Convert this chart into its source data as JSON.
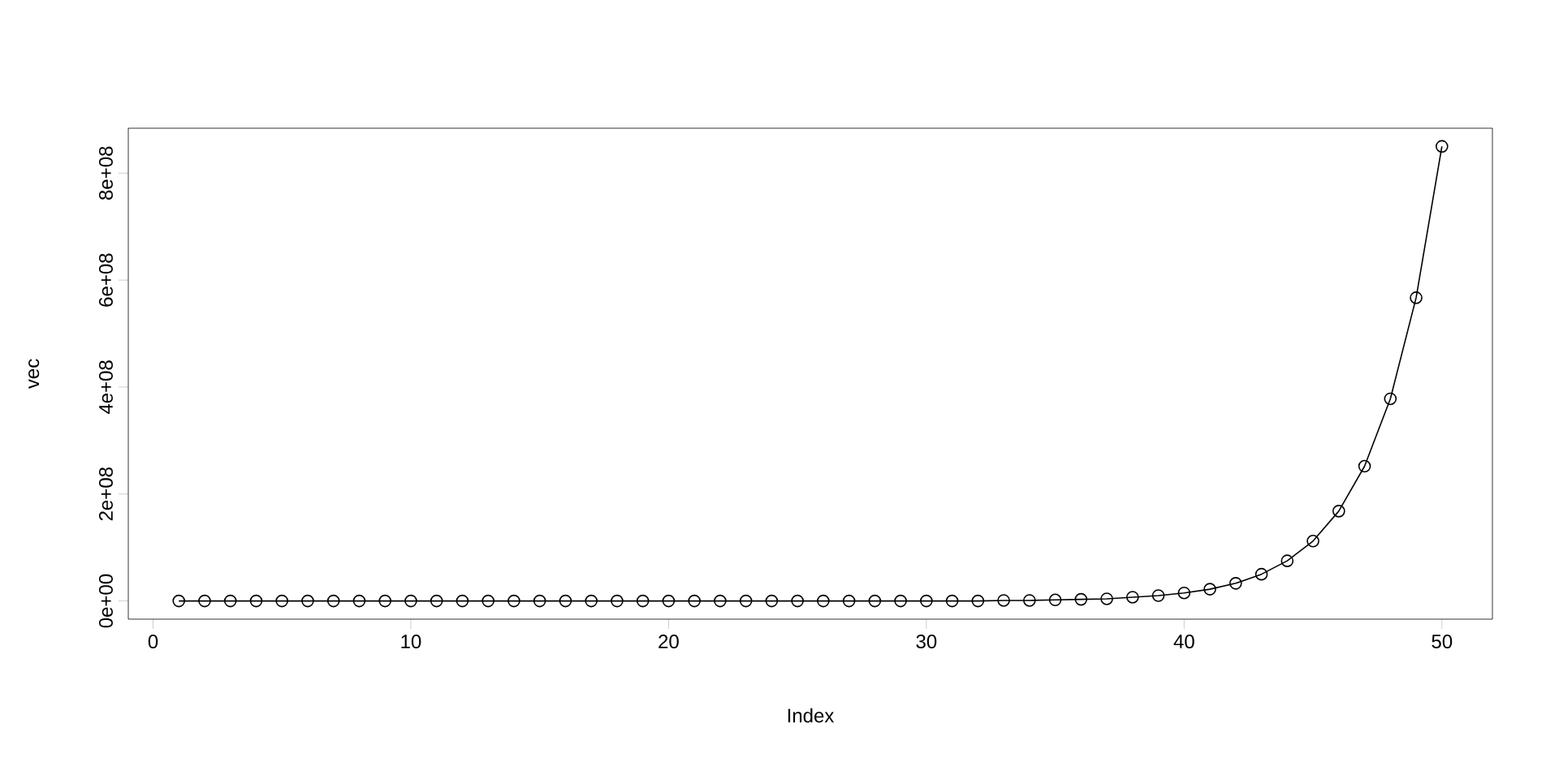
{
  "chart_data": {
    "type": "line",
    "xlabel": "Index",
    "ylabel": "vec",
    "x": [
      1,
      2,
      3,
      4,
      5,
      6,
      7,
      8,
      9,
      10,
      11,
      12,
      13,
      14,
      15,
      16,
      17,
      18,
      19,
      20,
      21,
      22,
      23,
      24,
      25,
      26,
      27,
      28,
      29,
      30,
      31,
      32,
      33,
      34,
      35,
      36,
      37,
      38,
      39,
      40,
      41,
      42,
      43,
      44,
      45,
      46,
      47,
      48,
      49,
      50
    ],
    "series": [
      {
        "color": "#000000",
        "values": [
          0,
          0,
          0,
          0,
          0,
          0,
          0,
          0,
          0,
          0,
          0,
          0,
          0,
          0,
          0,
          0,
          0,
          0,
          0,
          0,
          0,
          0,
          0,
          0,
          0,
          0,
          0,
          0,
          0,
          0,
          0,
          0,
          1000000,
          1000000,
          2000000,
          3000000,
          4000000,
          7000000,
          10000000,
          15000000,
          22000000,
          33000000,
          50000000,
          75000000,
          112000000,
          168000000,
          252000000,
          378000000,
          567000000,
          850000000
        ]
      }
    ],
    "xlim": [
      -0.96,
      51.96
    ],
    "ylim": [
      -34000000,
      884000000
    ],
    "xticks": [
      0,
      10,
      20,
      30,
      40,
      50
    ],
    "yticks": [
      {
        "value": 0,
        "label": "0e+00"
      },
      {
        "value": 200000000,
        "label": "2e+08"
      },
      {
        "value": 400000000,
        "label": "4e+08"
      },
      {
        "value": 600000000,
        "label": "6e+08"
      },
      {
        "value": 800000000,
        "label": "8e+08"
      }
    ],
    "marker": "circle",
    "line_style": "solid"
  }
}
